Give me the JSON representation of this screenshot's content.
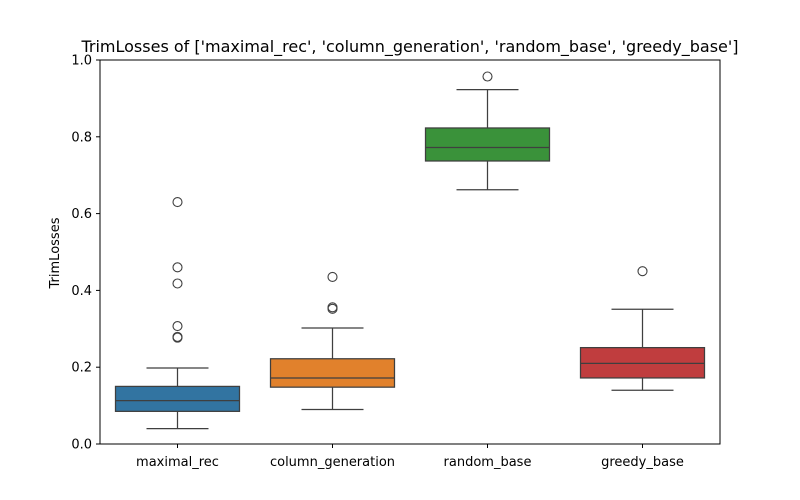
{
  "chart_data": {
    "type": "box",
    "title": "TrimLosses of ['maximal_rec', 'column_generation', 'random_base', 'greedy_base']",
    "xlabel": "",
    "ylabel": "TrimLosses",
    "ylim": [
      0.0,
      1.0
    ],
    "yticks": [
      "0.0",
      "0.2",
      "0.4",
      "0.6",
      "0.8",
      "1.0"
    ],
    "grid": false,
    "categories": [
      "maximal_rec",
      "column_generation",
      "random_base",
      "greedy_base"
    ],
    "colors": [
      "#3274a1",
      "#e1812c",
      "#3a923a",
      "#c03d3e"
    ],
    "boxes": [
      {
        "whisker_low": 0.04,
        "q1": 0.085,
        "median": 0.113,
        "q3": 0.15,
        "whisker_high": 0.198,
        "outliers": [
          0.277,
          0.279,
          0.307,
          0.418,
          0.46,
          0.63
        ]
      },
      {
        "whisker_low": 0.09,
        "q1": 0.148,
        "median": 0.172,
        "q3": 0.222,
        "whisker_high": 0.302,
        "outliers": [
          0.352,
          0.356,
          0.435
        ]
      },
      {
        "whisker_low": 0.662,
        "q1": 0.737,
        "median": 0.772,
        "q3": 0.823,
        "whisker_high": 0.923,
        "outliers": [
          0.957
        ]
      },
      {
        "whisker_low": 0.14,
        "q1": 0.172,
        "median": 0.21,
        "q3": 0.251,
        "whisker_high": 0.351,
        "outliers": [
          0.45
        ]
      }
    ]
  }
}
